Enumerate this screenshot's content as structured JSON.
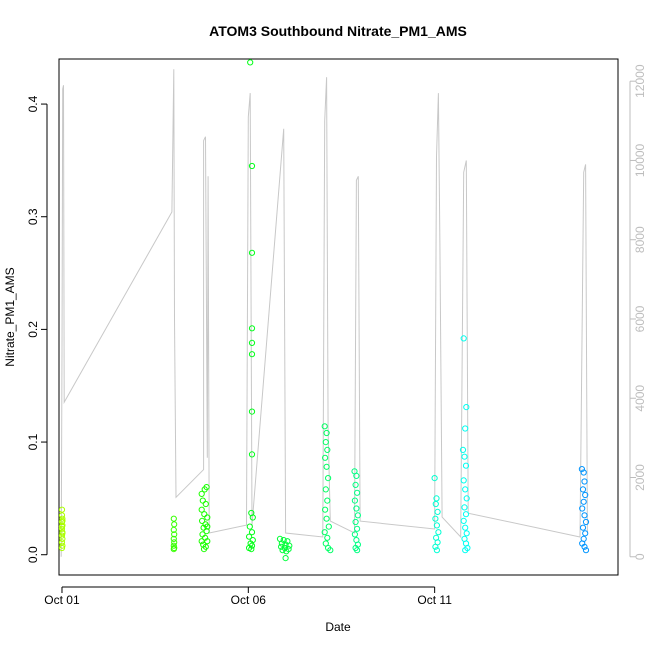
{
  "chart_data": {
    "type": "scatter",
    "title": "ATOM3 Southbound Nitrate_PM1_AMS",
    "xlabel": "Date",
    "ylabel": "Nitrate_PM1_AMS",
    "x_unit": "days from 2017-09-30",
    "xlim": [
      0.92,
      15.92
    ],
    "ylim": [
      -0.018,
      0.44
    ],
    "x_ticks": [
      {
        "value": 1,
        "label": "Oct 01"
      },
      {
        "value": 6,
        "label": "Oct 06"
      },
      {
        "value": 11,
        "label": "Oct 11"
      }
    ],
    "y_ticks": [
      0.0,
      0.1,
      0.2,
      0.3,
      0.4
    ],
    "y_tick_labels": [
      "0.0",
      "0.1",
      "0.2",
      "0.3",
      "0.4"
    ],
    "y2_ticks": [
      0,
      2000,
      4000,
      6000,
      8000,
      10000,
      12000
    ],
    "y2_tick_labels": [
      "0",
      "2000",
      "4000",
      "6000",
      "8000",
      "10000",
      "12000"
    ],
    "y2lim": [
      -460,
      12560
    ],
    "grid": false,
    "series": [
      {
        "color_scale": "rainbow hue over time (yellow-green → green → cyan → blue)",
        "points": [
          [
            1.0,
            0.04
          ],
          [
            1.0,
            0.035
          ],
          [
            1.01,
            0.032
          ],
          [
            1.0,
            0.029
          ],
          [
            1.01,
            0.026
          ],
          [
            1.0,
            0.023
          ],
          [
            1.01,
            0.02
          ],
          [
            1.0,
            0.017
          ],
          [
            1.01,
            0.014
          ],
          [
            1.0,
            0.011
          ],
          [
            1.01,
            0.008
          ],
          [
            1.0,
            0.006
          ],
          [
            1.01,
            0.03
          ],
          [
            1.0,
            0.025
          ],
          [
            1.01,
            0.019
          ],
          [
            4.0,
            0.032
          ],
          [
            4.01,
            0.027
          ],
          [
            4.0,
            0.022
          ],
          [
            4.01,
            0.018
          ],
          [
            4.0,
            0.014
          ],
          [
            4.01,
            0.011
          ],
          [
            4.0,
            0.008
          ],
          [
            4.01,
            0.006
          ],
          [
            4.0,
            0.005
          ],
          [
            4.75,
            0.054
          ],
          [
            4.83,
            0.058
          ],
          [
            4.88,
            0.06
          ],
          [
            4.78,
            0.048
          ],
          [
            4.86,
            0.045
          ],
          [
            4.75,
            0.04
          ],
          [
            4.82,
            0.036
          ],
          [
            4.9,
            0.033
          ],
          [
            4.76,
            0.03
          ],
          [
            4.85,
            0.027
          ],
          [
            4.8,
            0.024
          ],
          [
            4.88,
            0.021
          ],
          [
            4.77,
            0.018
          ],
          [
            4.84,
            0.015
          ],
          [
            4.9,
            0.012
          ],
          [
            4.79,
            0.009
          ],
          [
            4.86,
            0.007
          ],
          [
            4.81,
            0.005
          ],
          [
            4.75,
            0.012
          ],
          [
            4.9,
            0.025
          ],
          [
            6.05,
            0.437
          ],
          [
            6.1,
            0.345
          ],
          [
            6.1,
            0.268
          ],
          [
            6.1,
            0.201
          ],
          [
            6.1,
            0.188
          ],
          [
            6.1,
            0.178
          ],
          [
            6.1,
            0.127
          ],
          [
            6.1,
            0.089
          ],
          [
            6.08,
            0.037
          ],
          [
            6.12,
            0.033
          ],
          [
            6.04,
            0.025
          ],
          [
            6.1,
            0.02
          ],
          [
            6.02,
            0.016
          ],
          [
            6.12,
            0.013
          ],
          [
            6.06,
            0.01
          ],
          [
            6.1,
            0.008
          ],
          [
            6.02,
            0.006
          ],
          [
            6.08,
            0.005
          ],
          [
            6.85,
            0.014
          ],
          [
            6.95,
            0.013
          ],
          [
            7.05,
            0.012
          ],
          [
            6.9,
            0.01
          ],
          [
            7.0,
            0.009
          ],
          [
            7.1,
            0.008
          ],
          [
            6.88,
            0.007
          ],
          [
            6.98,
            0.006
          ],
          [
            7.08,
            0.005
          ],
          [
            6.92,
            0.004
          ],
          [
            7.02,
            0.003
          ],
          [
            7.0,
            -0.003
          ],
          [
            8.05,
            0.114
          ],
          [
            8.1,
            0.108
          ],
          [
            8.08,
            0.1
          ],
          [
            8.12,
            0.093
          ],
          [
            8.06,
            0.086
          ],
          [
            8.1,
            0.078
          ],
          [
            8.14,
            0.068
          ],
          [
            8.08,
            0.058
          ],
          [
            8.12,
            0.048
          ],
          [
            8.06,
            0.04
          ],
          [
            8.1,
            0.032
          ],
          [
            8.16,
            0.025
          ],
          [
            8.05,
            0.02
          ],
          [
            8.12,
            0.015
          ],
          [
            8.08,
            0.01
          ],
          [
            8.14,
            0.006
          ],
          [
            8.2,
            0.004
          ],
          [
            8.85,
            0.074
          ],
          [
            8.9,
            0.07
          ],
          [
            8.88,
            0.062
          ],
          [
            8.92,
            0.055
          ],
          [
            8.86,
            0.048
          ],
          [
            8.9,
            0.041
          ],
          [
            8.94,
            0.035
          ],
          [
            8.88,
            0.029
          ],
          [
            8.92,
            0.023
          ],
          [
            8.86,
            0.018
          ],
          [
            8.9,
            0.013
          ],
          [
            8.94,
            0.009
          ],
          [
            8.88,
            0.006
          ],
          [
            8.92,
            0.004
          ],
          [
            11.0,
            0.068
          ],
          [
            11.05,
            0.05
          ],
          [
            11.03,
            0.045
          ],
          [
            11.08,
            0.038
          ],
          [
            11.02,
            0.032
          ],
          [
            11.06,
            0.026
          ],
          [
            11.1,
            0.02
          ],
          [
            11.04,
            0.015
          ],
          [
            11.08,
            0.011
          ],
          [
            11.02,
            0.007
          ],
          [
            11.06,
            0.004
          ],
          [
            11.78,
            0.192
          ],
          [
            11.85,
            0.131
          ],
          [
            11.82,
            0.112
          ],
          [
            11.76,
            0.093
          ],
          [
            11.8,
            0.087
          ],
          [
            11.84,
            0.079
          ],
          [
            11.78,
            0.066
          ],
          [
            11.82,
            0.058
          ],
          [
            11.86,
            0.05
          ],
          [
            11.8,
            0.042
          ],
          [
            11.84,
            0.036
          ],
          [
            11.78,
            0.03
          ],
          [
            11.82,
            0.024
          ],
          [
            11.86,
            0.019
          ],
          [
            11.8,
            0.014
          ],
          [
            11.84,
            0.01
          ],
          [
            11.88,
            0.006
          ],
          [
            11.82,
            0.004
          ],
          [
            14.95,
            0.076
          ],
          [
            15.0,
            0.073
          ],
          [
            15.02,
            0.065
          ],
          [
            14.98,
            0.058
          ],
          [
            15.04,
            0.053
          ],
          [
            15.0,
            0.047
          ],
          [
            14.96,
            0.041
          ],
          [
            15.02,
            0.035
          ],
          [
            15.06,
            0.029
          ],
          [
            14.98,
            0.024
          ],
          [
            15.04,
            0.019
          ],
          [
            15.0,
            0.014
          ],
          [
            14.96,
            0.01
          ],
          [
            15.02,
            0.007
          ],
          [
            15.06,
            0.004
          ]
        ]
      },
      {
        "color": "#c8c8c8",
        "axis": "right",
        "points": [
          [
            0.98,
            0
          ],
          [
            1.0,
            5200
          ],
          [
            1.02,
            11800
          ],
          [
            1.04,
            11900
          ],
          [
            1.06,
            3900
          ],
          [
            3.95,
            8700
          ],
          [
            4.0,
            12300
          ],
          [
            4.02,
            6000
          ],
          [
            4.06,
            1500
          ],
          [
            4.8,
            2200
          ],
          [
            4.8,
            10500
          ],
          [
            4.85,
            10600
          ],
          [
            4.9,
            2500
          ],
          [
            4.92,
            9600
          ],
          [
            4.95,
            600
          ],
          [
            5.95,
            800
          ],
          [
            6.0,
            11100
          ],
          [
            6.05,
            11700
          ],
          [
            6.1,
            800
          ],
          [
            6.95,
            10800
          ],
          [
            7.0,
            600
          ],
          [
            8.0,
            500
          ],
          [
            8.05,
            11000
          ],
          [
            8.1,
            12100
          ],
          [
            8.14,
            3200
          ],
          [
            8.2,
            900
          ],
          [
            8.85,
            600
          ],
          [
            8.9,
            9500
          ],
          [
            8.95,
            9600
          ],
          [
            9.0,
            900
          ],
          [
            11.0,
            700
          ],
          [
            11.05,
            10100
          ],
          [
            11.1,
            11700
          ],
          [
            11.14,
            7900
          ],
          [
            11.2,
            1000
          ],
          [
            11.7,
            500
          ],
          [
            11.78,
            9700
          ],
          [
            11.85,
            10000
          ],
          [
            11.9,
            1100
          ],
          [
            14.9,
            500
          ],
          [
            15.0,
            9700
          ],
          [
            15.05,
            9900
          ],
          [
            15.1,
            600
          ]
        ]
      }
    ]
  }
}
